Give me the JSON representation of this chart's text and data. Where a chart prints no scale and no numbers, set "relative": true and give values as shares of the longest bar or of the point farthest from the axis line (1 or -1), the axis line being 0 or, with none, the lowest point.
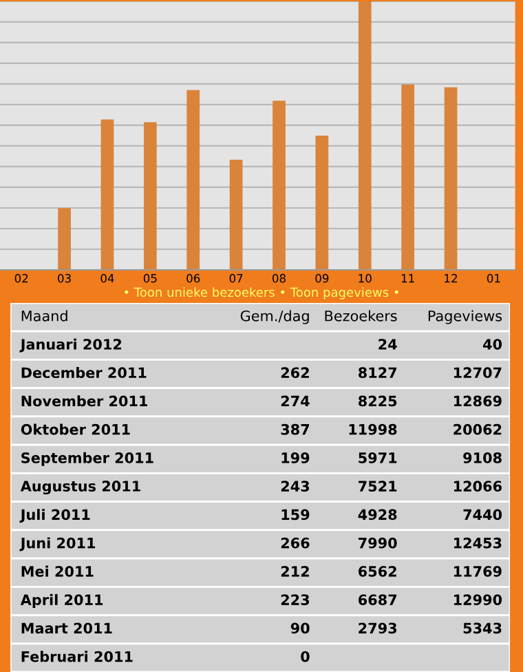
{
  "chart_data": [
    {
      "type": "bar",
      "categories": [
        "02",
        "03",
        "04",
        "05",
        "06",
        "07",
        "08",
        "09",
        "10",
        "11",
        "12",
        "01"
      ],
      "values": [
        0,
        0.23,
        0.56,
        0.55,
        0.67,
        0.41,
        0.63,
        0.5,
        1,
        0.69,
        0.68,
        0
      ],
      "color": "#d9843a",
      "relative": true,
      "grid": "y",
      "tick_labels": "x"
    },
    {
      "type": "other",
      "title": "• Toon unieke bezoekers • Toon pageviews •",
      "ylabel": "Maand",
      "categories": [
        "Januari 2012",
        "December 2011",
        "November 2011",
        "Oktober 2011",
        "September 2011",
        "Augustus 2011",
        "Juli 2011",
        "Juni 2011",
        "Mei 2011",
        "April 2011",
        "Maart 2011",
        "Februari 2011"
      ],
      "series": [
        {
          "name": "Gem./dag",
          "values": [
            null,
            262,
            274,
            387,
            199,
            243,
            159,
            266,
            212,
            223,
            90,
            0
          ]
        },
        {
          "name": "Bezoekers",
          "values": [
            24,
            8127,
            8225,
            11998,
            5971,
            7521,
            4928,
            7990,
            6562,
            6687,
            2793,
            null
          ]
        },
        {
          "name": "Pageviews",
          "values": [
            40,
            12707,
            12869,
            20062,
            9108,
            12066,
            7440,
            12453,
            11769,
            12990,
            5343,
            null
          ]
        }
      ],
      "data_labels": true
    }
  ]
}
